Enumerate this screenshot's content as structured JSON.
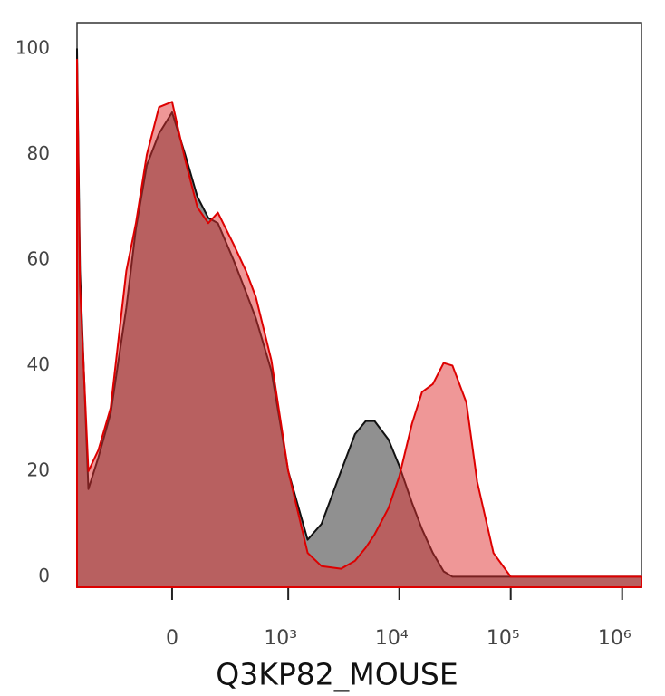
{
  "chart_data": {
    "type": "area",
    "x_label": "Q3KP82_MOUSE",
    "xscale": {
      "type": "asinh",
      "cofactor": 183
    },
    "xlim": [
      -640,
      1490000
    ],
    "xticks": [
      0,
      {
        "value": 1000,
        "label": "10³"
      },
      {
        "value": 10000,
        "label": "10⁴"
      },
      {
        "value": 100000,
        "label": "10⁵"
      },
      {
        "value": 1000000,
        "label": "10⁶"
      }
    ],
    "ylim": [
      -2,
      105
    ],
    "yticks": [
      0,
      20,
      40,
      60,
      80,
      100
    ],
    "x": [
      -640,
      -600,
      -500,
      -400,
      -300,
      -200,
      -150,
      -100,
      -50,
      0,
      50,
      100,
      150,
      200,
      300,
      400,
      500,
      700,
      1000,
      1500,
      2000,
      3000,
      4000,
      5000,
      6000,
      8000,
      10000,
      13000,
      16000,
      20000,
      25000,
      30000,
      40000,
      50000,
      70000,
      100000,
      200000,
      500000,
      1000000,
      1490000
    ],
    "series": [
      {
        "color": "#555555",
        "line_color": "#111111",
        "values": [
          100,
          58,
          16.6,
          22.6,
          31,
          51,
          66,
          78,
          84,
          88,
          80,
          72,
          68,
          67,
          60,
          54,
          49,
          39,
          20,
          7,
          10,
          20,
          27,
          29.5,
          29.5,
          26,
          21,
          14,
          9,
          4.5,
          1,
          0,
          0,
          0,
          0,
          0,
          0,
          0,
          0,
          0
        ]
      },
      {
        "color": "#e03030",
        "line_color": "#dd0000",
        "values": [
          98,
          55,
          20,
          24,
          32,
          58,
          67,
          80,
          89,
          90,
          79,
          70,
          67,
          69,
          63,
          58,
          53,
          41,
          20,
          4.5,
          2,
          1.5,
          3,
          5.5,
          8,
          13,
          19,
          29,
          35,
          36.5,
          40.5,
          40,
          33,
          18,
          4.5,
          0,
          0,
          0,
          0,
          0
        ]
      }
    ]
  }
}
